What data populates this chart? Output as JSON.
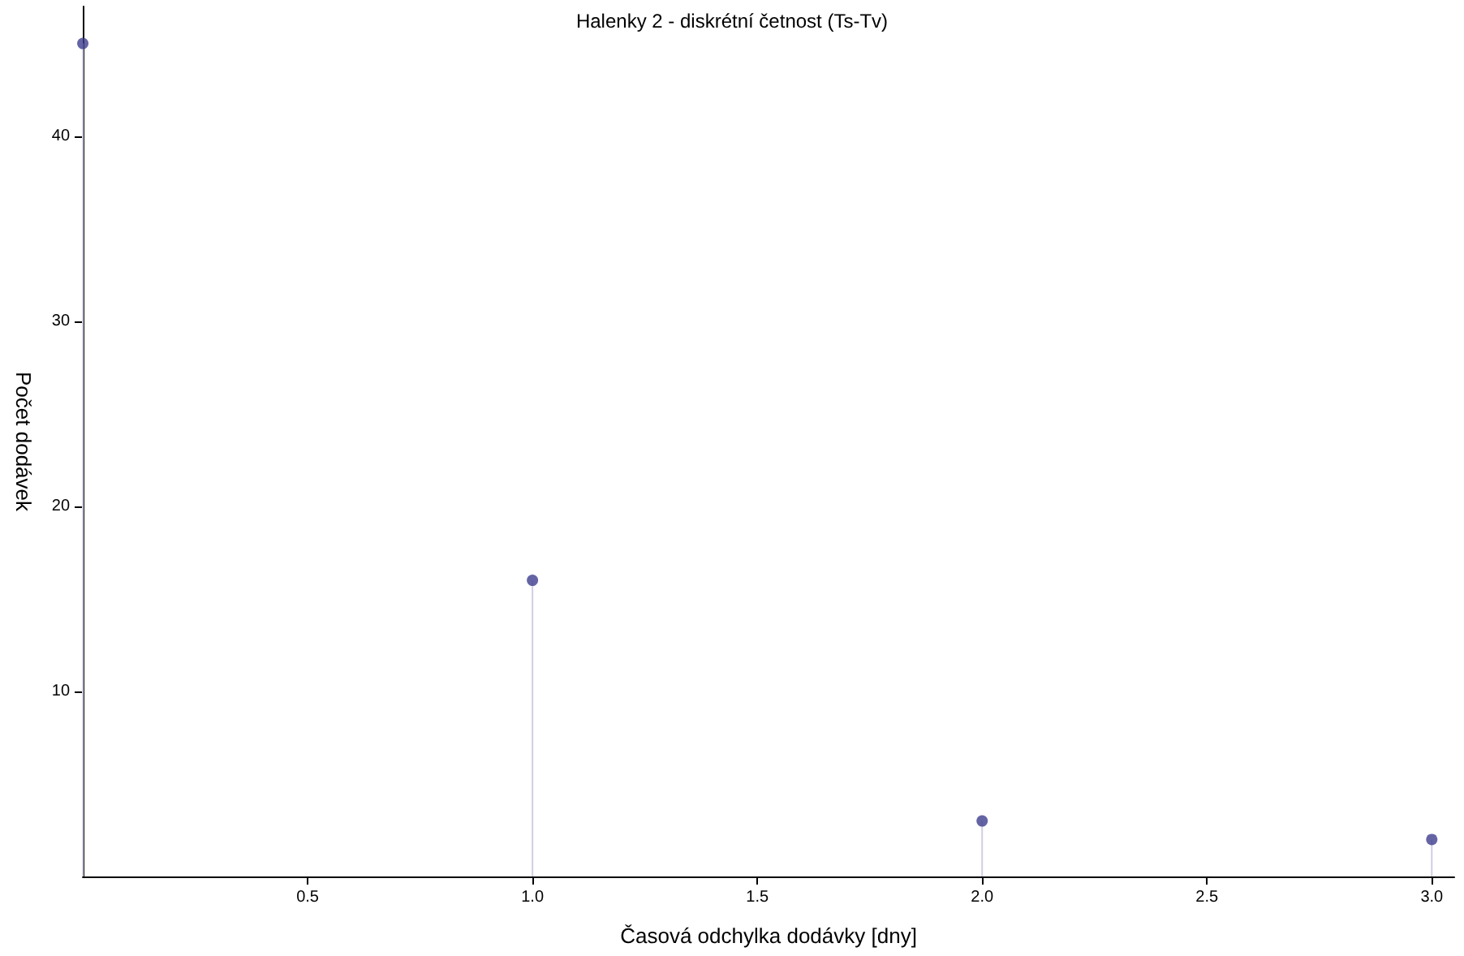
{
  "chart_data": {
    "type": "lollipop",
    "title": "Halenky 2 - diskrétní četnost (Ts-Tv)",
    "xlabel": "Časová odchylka dodávky [dny]",
    "ylabel": "Počet dodávek",
    "x": [
      0,
      1,
      2,
      3
    ],
    "values": [
      45,
      16,
      3,
      2
    ],
    "color": "#3d3d8f",
    "xlim": [
      0,
      3.05
    ],
    "xticks": [
      {
        "value": 0.5,
        "label": "0.5"
      },
      {
        "value": 1,
        "label": "1.0"
      },
      {
        "value": 1.5,
        "label": "1.5"
      },
      {
        "value": 2,
        "label": "2.0"
      },
      {
        "value": 2.5,
        "label": "2.5"
      },
      {
        "value": 3,
        "label": "3.0"
      }
    ],
    "ylim": [
      0,
      47
    ],
    "yticks": [
      10,
      20,
      30,
      40
    ],
    "grid": false,
    "marker": "circle"
  }
}
